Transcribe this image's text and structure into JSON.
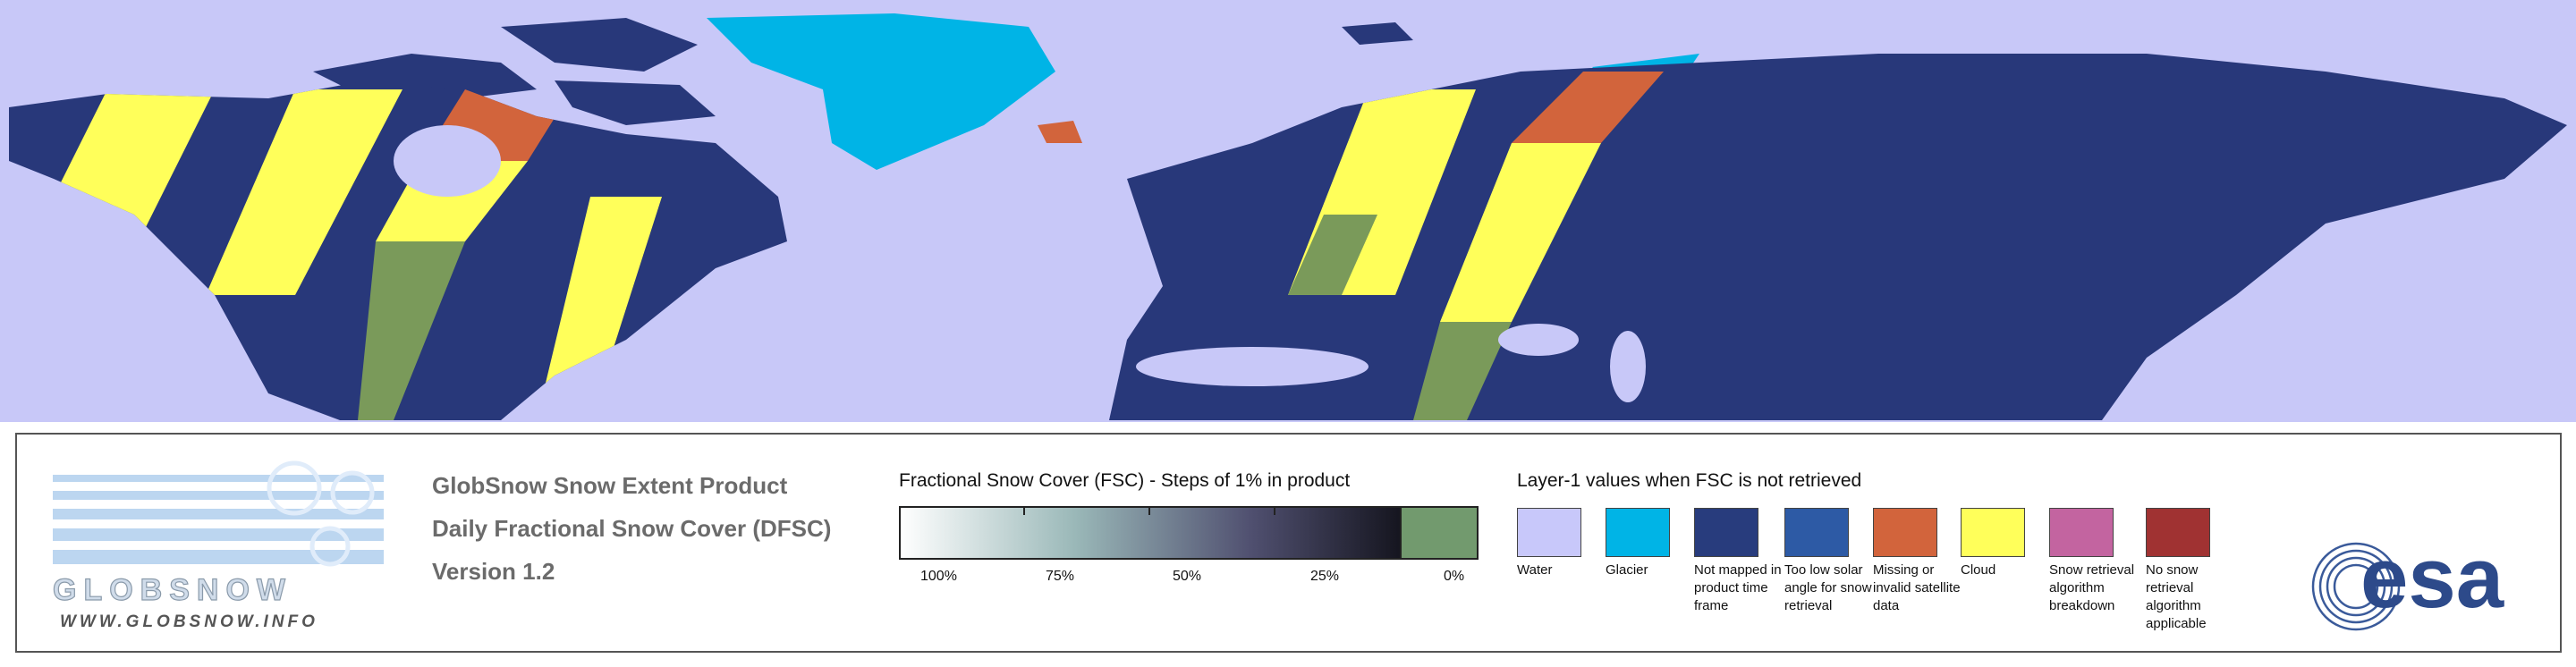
{
  "logo": {
    "wordmark": "GLOBSNOW",
    "url": "WWW.GLOBSNOW.INFO"
  },
  "product": {
    "lines": [
      "GlobSnow Snow Extent Product",
      "Daily Fractional Snow Cover (DFSC)",
      "Version 1.2"
    ]
  },
  "fsc_scale": {
    "title": "Fractional Snow Cover (FSC) - Steps of 1% in product",
    "labels": [
      "100%",
      "75%",
      "50%",
      "25%",
      "0%"
    ]
  },
  "layer1": {
    "title": "Layer-1 values when FSC is not retrieved",
    "classes": [
      {
        "label": "Water",
        "color": "#c8c8fa"
      },
      {
        "label": "Glacier",
        "color": "#00b4e6"
      },
      {
        "label": "Not mapped in product time frame",
        "color": "#283c7d"
      },
      {
        "label": "Too low solar angle for snow retrieval",
        "color": "#2d5aa5"
      },
      {
        "label": "Missing or invalid satellite data",
        "color": "#d2643c"
      },
      {
        "label": "Cloud",
        "color": "#ffff5a"
      },
      {
        "label": "Snow retrieval algorithm breakdown",
        "color": "#c364a0"
      },
      {
        "label": "No snow retrieval algorithm applicable",
        "color": "#a03232"
      }
    ]
  },
  "esa": "esa"
}
